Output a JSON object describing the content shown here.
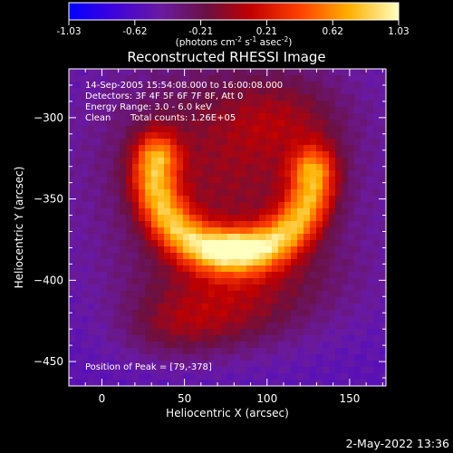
{
  "chart_data": {
    "type": "heatmap",
    "title": "Reconstructed RHESSI Image",
    "xlabel": "Heliocentric X (arcsec)",
    "ylabel": "Heliocentric Y (arcsec)",
    "xlim": [
      -20,
      172
    ],
    "ylim": [
      -465,
      -270
    ],
    "xticks": [
      0,
      50,
      100,
      150
    ],
    "yticks": [
      -300,
      -350,
      -400,
      -450
    ],
    "colorbar": {
      "ticks": [
        "-1.03",
        "-0.62",
        "-0.21",
        "0.21",
        "0.62",
        "1.03"
      ],
      "min": -1.03,
      "max": 1.03,
      "unit_main": "(photons cm",
      "unit_sup1": "-2",
      "unit_mid": " s",
      "unit_sup2": "-1",
      "unit_end": " asec",
      "unit_sup3": "-2",
      "unit_close": ")"
    },
    "annotations": [
      "14-Sep-2005 15:54:08.000 to 16:00:08.000",
      "Detectors: 3F 4F 5F 6F 7F 8F, Att 0",
      "Energy Range: 3.0 - 6.0 keV",
      "Clean",
      "Total counts: 1.26E+05"
    ],
    "peak_label": "Position of Peak = [79,-378]",
    "peak": [
      79,
      -378
    ],
    "sources": [
      {
        "shape": "arc",
        "cx": 80,
        "cy": -335,
        "r": 48,
        "width": 10,
        "start_deg": 170,
        "end_deg": 360,
        "amp": 1.0
      },
      {
        "shape": "blob",
        "x": 80,
        "y": -378,
        "sx": 12,
        "sy": 7,
        "amp": 0.35
      },
      {
        "shape": "blob",
        "x": 75,
        "y": -330,
        "sx": 55,
        "sy": 50,
        "amp": 0.5
      },
      {
        "shape": "blob",
        "x": 85,
        "y": -400,
        "sx": 45,
        "sy": 22,
        "amp": 0.35
      },
      {
        "shape": "blob",
        "x": 70,
        "y": -425,
        "sx": 30,
        "sy": 15,
        "amp": 0.25
      },
      {
        "shape": "blob",
        "x": 40,
        "y": -430,
        "sx": 22,
        "sy": 14,
        "amp": 0.22
      },
      {
        "shape": "blob",
        "x": 110,
        "y": -300,
        "sx": 25,
        "sy": 18,
        "amp": 0.25
      }
    ],
    "background_level": -0.55
  },
  "footer_timestamp": "2-May-2022 13:36"
}
